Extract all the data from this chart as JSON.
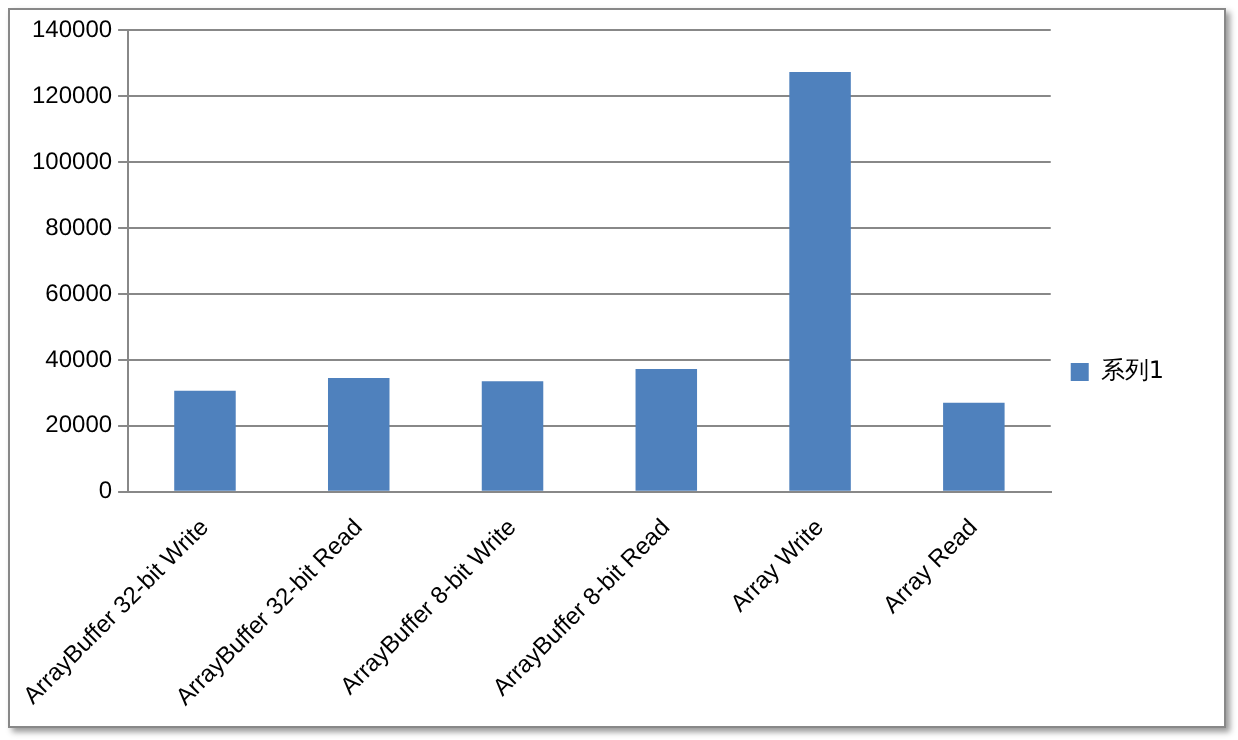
{
  "chart_data": {
    "type": "bar",
    "categories": [
      "ArrayBuffer 32-bit Write",
      "ArrayBuffer 32-bit Read",
      "ArrayBuffer 8-bit Write",
      "ArrayBuffer 8-bit Read",
      "Array Write",
      "Array Read"
    ],
    "series": [
      {
        "name": "系列1",
        "color": "#4f81bd",
        "values": [
          30600,
          34500,
          33500,
          37200,
          127400,
          27000
        ]
      }
    ],
    "ylim": [
      0,
      140000
    ],
    "yticks": [
      0,
      20000,
      40000,
      60000,
      80000,
      100000,
      120000,
      140000
    ],
    "grid": "y",
    "legend": "right"
  }
}
